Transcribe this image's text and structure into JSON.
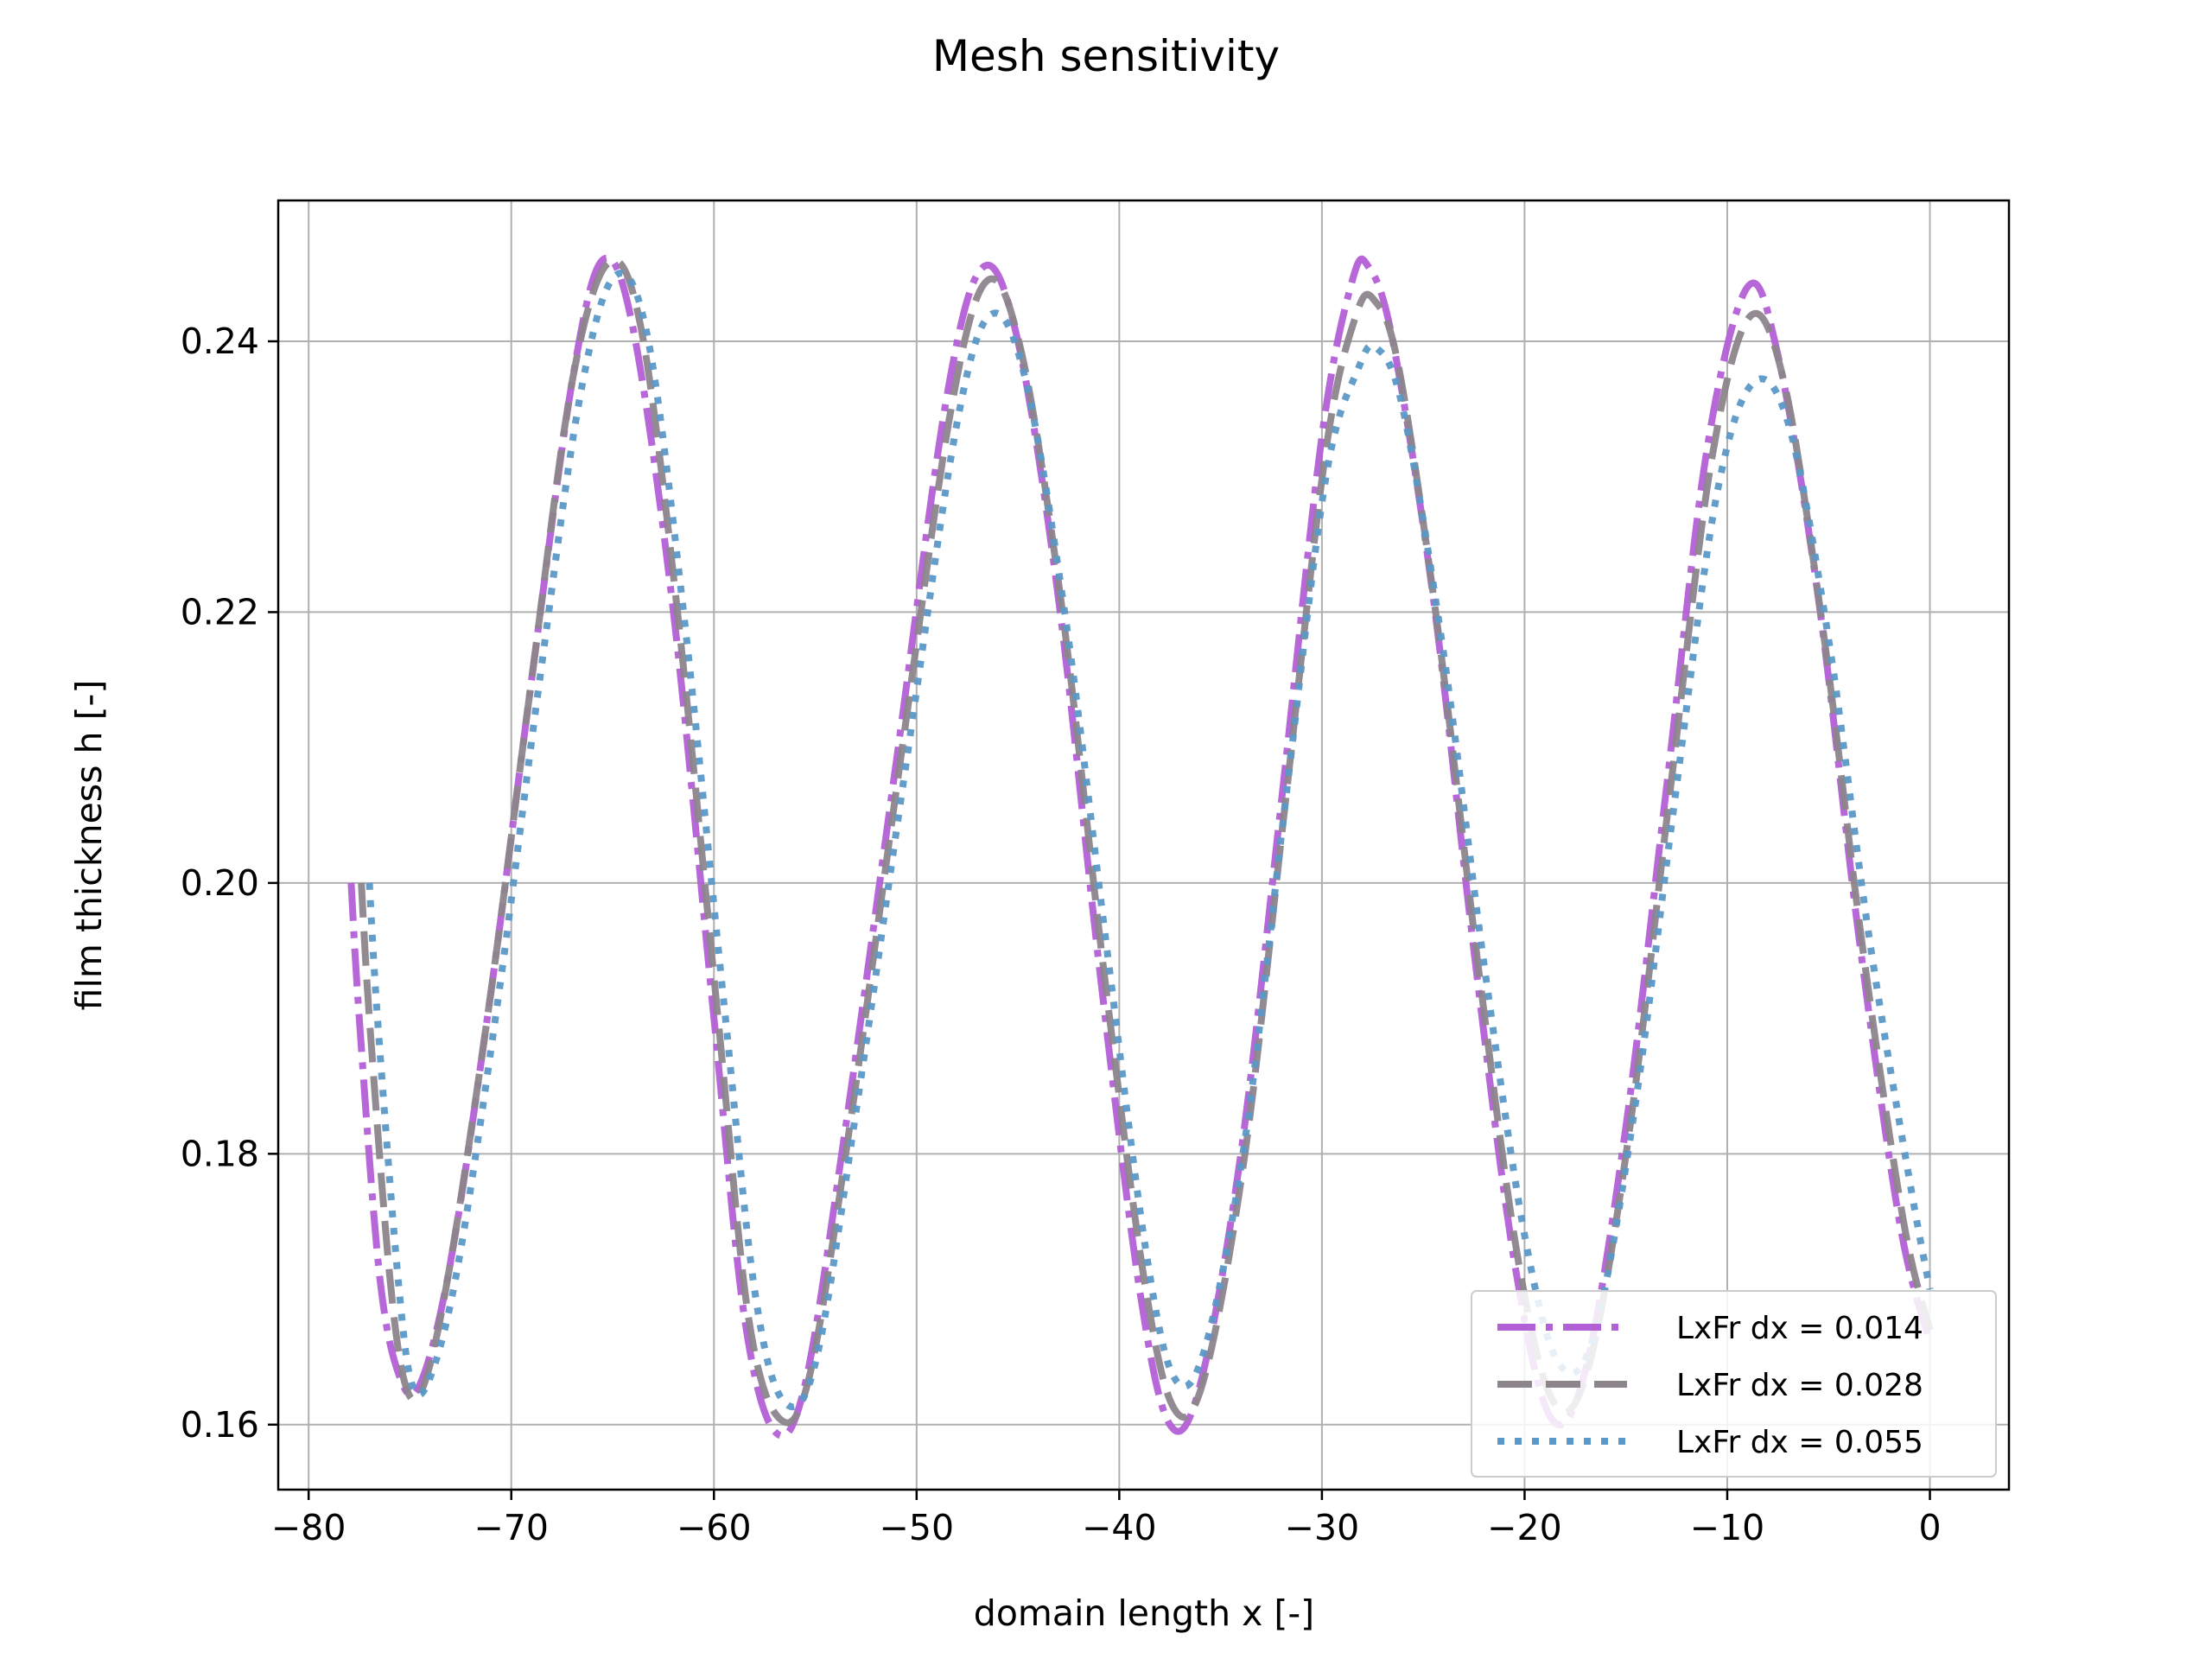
{
  "chart_data": {
    "type": "line",
    "title": "Mesh sensitivity",
    "xlabel": "domain length x [-]",
    "ylabel": "film thickness h [-]",
    "xlim": [
      -81.5,
      3.9
    ],
    "ylim": [
      0.1552,
      0.2504
    ],
    "xticks": [
      -80,
      -70,
      -60,
      -50,
      -40,
      -30,
      -20,
      -10,
      0
    ],
    "xtick_labels": [
      "−80",
      "−70",
      "−60",
      "−50",
      "−40",
      "−30",
      "−20",
      "−10",
      "0"
    ],
    "yticks": [
      0.16,
      0.18,
      0.2,
      0.22,
      0.24
    ],
    "ytick_labels": [
      "0.16",
      "0.18",
      "0.20",
      "0.22",
      "0.24"
    ],
    "grid": true,
    "legend_position": "lower-right",
    "series": [
      {
        "name": "LxFr dx = 0.014",
        "color": "#b35fd6",
        "style": "dashdot",
        "x": [
          -77.9,
          -77.5,
          -76.5,
          -75.5,
          -74.5,
          -73.0,
          -71.0,
          -69.0,
          -67.0,
          -65.5,
          -64.0,
          -62.0,
          -60.0,
          -58.5,
          -57.0,
          -55.5,
          -53.5,
          -51.0,
          -48.5,
          -46.7,
          -45.0,
          -43.0,
          -41.0,
          -39.0,
          -37.5,
          -36.0,
          -34.0,
          -32.0,
          -30.0,
          -28.5,
          -27.7,
          -26.5,
          -24.5,
          -22.5,
          -20.5,
          -18.7,
          -17.0,
          -15.0,
          -13.0,
          -11.0,
          -9.0,
          -7.5,
          -5.5,
          -3.5,
          -1.5,
          0.0
        ],
        "y": [
          0.2,
          0.19,
          0.171,
          0.1635,
          0.163,
          0.172,
          0.192,
          0.215,
          0.237,
          0.246,
          0.241,
          0.22,
          0.19,
          0.168,
          0.1595,
          0.163,
          0.182,
          0.209,
          0.236,
          0.2455,
          0.24,
          0.221,
          0.194,
          0.17,
          0.16,
          0.163,
          0.18,
          0.206,
          0.233,
          0.2445,
          0.2455,
          0.24,
          0.221,
          0.195,
          0.172,
          0.1605,
          0.164,
          0.182,
          0.207,
          0.232,
          0.244,
          0.239,
          0.221,
          0.196,
          0.175,
          0.166
        ]
      },
      {
        "name": "LxFr dx = 0.028",
        "color": "#8c858c",
        "style": "dashed",
        "x": [
          -77.4,
          -77.0,
          -76.0,
          -75.2,
          -74.3,
          -73.0,
          -71.0,
          -69.0,
          -67.0,
          -65.2,
          -63.6,
          -61.8,
          -59.8,
          -58.3,
          -56.8,
          -55.3,
          -53.3,
          -50.8,
          -48.3,
          -46.5,
          -44.8,
          -42.8,
          -40.8,
          -38.8,
          -37.3,
          -35.8,
          -33.8,
          -31.8,
          -29.8,
          -28.3,
          -27.4,
          -26.2,
          -24.3,
          -22.3,
          -20.3,
          -18.5,
          -16.8,
          -14.8,
          -12.8,
          -10.8,
          -8.9,
          -7.2,
          -5.3,
          -3.3,
          -1.3,
          0.0
        ],
        "y": [
          0.2,
          0.19,
          0.171,
          0.1628,
          0.163,
          0.172,
          0.192,
          0.215,
          0.237,
          0.2458,
          0.241,
          0.22,
          0.19,
          0.168,
          0.1605,
          0.1635,
          0.182,
          0.209,
          0.235,
          0.2445,
          0.239,
          0.22,
          0.194,
          0.171,
          0.1612,
          0.1635,
          0.18,
          0.206,
          0.232,
          0.242,
          0.243,
          0.238,
          0.219,
          0.194,
          0.172,
          0.1615,
          0.1645,
          0.182,
          0.207,
          0.231,
          0.2418,
          0.237,
          0.219,
          0.195,
          0.175,
          0.167
        ]
      },
      {
        "name": "LxFr dx = 0.055",
        "color": "#5b98c7",
        "style": "dotted",
        "x": [
          -77.0,
          -76.6,
          -75.6,
          -74.9,
          -74.0,
          -72.6,
          -70.6,
          -68.6,
          -66.6,
          -64.9,
          -63.3,
          -61.5,
          -59.5,
          -58.0,
          -56.6,
          -55.0,
          -53.0,
          -50.5,
          -48.0,
          -46.3,
          -44.6,
          -42.6,
          -40.6,
          -38.7,
          -37.3,
          -35.8,
          -33.8,
          -31.8,
          -29.8,
          -28.2,
          -27.3,
          -26.0,
          -24.0,
          -22.0,
          -20.0,
          -18.3,
          -16.6,
          -14.6,
          -12.6,
          -10.6,
          -8.8,
          -7.0,
          -5.0,
          -3.0,
          -1.0,
          0.0
        ],
        "y": [
          0.2,
          0.19,
          0.171,
          0.163,
          0.1635,
          0.172,
          0.192,
          0.215,
          0.236,
          0.2448,
          0.2405,
          0.22,
          0.191,
          0.17,
          0.1618,
          0.1645,
          0.183,
          0.209,
          0.234,
          0.242,
          0.237,
          0.219,
          0.195,
          0.173,
          0.1635,
          0.1655,
          0.181,
          0.206,
          0.23,
          0.238,
          0.2395,
          0.235,
          0.217,
          0.194,
          0.174,
          0.1645,
          0.1665,
          0.183,
          0.206,
          0.228,
          0.2368,
          0.234,
          0.218,
          0.196,
          0.178,
          0.17
        ]
      }
    ]
  }
}
